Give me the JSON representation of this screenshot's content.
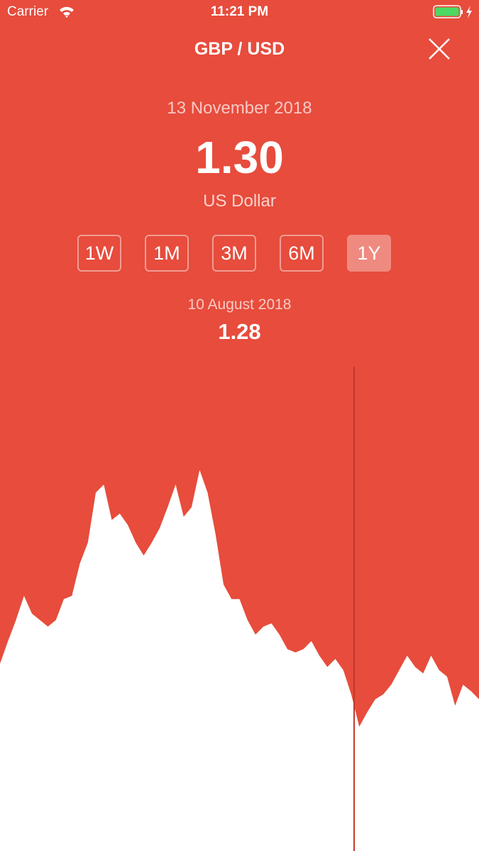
{
  "status_bar": {
    "carrier": "Carrier",
    "time": "11:21 PM"
  },
  "header": {
    "title": "GBP / USD"
  },
  "summary": {
    "date": "13 November 2018",
    "rate": "1.30",
    "currency": "US Dollar"
  },
  "ranges": {
    "options": [
      "1W",
      "1M",
      "3M",
      "6M",
      "1Y"
    ],
    "selected_index": 4
  },
  "selection": {
    "date": "10 August 2018",
    "value": "1.28"
  },
  "chart_data": {
    "type": "area",
    "color": "#ffffff",
    "ylim": [
      1.19,
      1.49
    ],
    "values": [
      1.306,
      1.32,
      1.333,
      1.348,
      1.337,
      1.333,
      1.329,
      1.333,
      1.346,
      1.348,
      1.368,
      1.381,
      1.412,
      1.417,
      1.395,
      1.399,
      1.392,
      1.381,
      1.373,
      1.381,
      1.39,
      1.403,
      1.417,
      1.397,
      1.403,
      1.426,
      1.412,
      1.386,
      1.355,
      1.346,
      1.346,
      1.333,
      1.324,
      1.329,
      1.331,
      1.324,
      1.315,
      1.313,
      1.315,
      1.32,
      1.311,
      1.304,
      1.309,
      1.302,
      1.287,
      1.267,
      1.276,
      1.284,
      1.287,
      1.293,
      1.302,
      1.311,
      1.304,
      1.3,
      1.311,
      1.302,
      1.298,
      1.28,
      1.293,
      1.289,
      1.284
    ]
  }
}
